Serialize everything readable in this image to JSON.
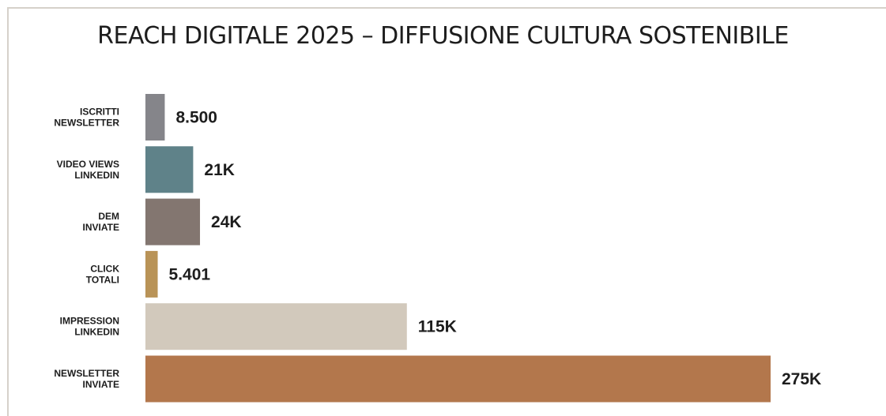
{
  "chart_data": {
    "type": "bar",
    "orientation": "horizontal",
    "title": "REACH DIGITALE 2025 – DIFFUSIONE CULTURA SOSTENIBILE",
    "categories": [
      [
        "ISCRITTI",
        "NEWSLETTER"
      ],
      [
        "VIDEO VIEWS",
        "LINKEDIN"
      ],
      [
        "DEM",
        "INVIATE"
      ],
      [
        "CLICK",
        "TOTALI"
      ],
      [
        "IMPRESSION",
        "LINKEDIN"
      ],
      [
        "NEWSLETTER",
        "INVIATE"
      ]
    ],
    "values": [
      8500,
      21000,
      24000,
      5401,
      115000,
      275000
    ],
    "value_labels": [
      "8.500",
      "21K",
      "24K",
      "5.401",
      "115K",
      "275K"
    ],
    "colors": [
      "#85858a",
      "#5f8289",
      "#837670",
      "#b99357",
      "#d2c9bc",
      "#b3774c"
    ],
    "xlim": [
      0,
      275000
    ],
    "grid": false,
    "legend": "none"
  }
}
